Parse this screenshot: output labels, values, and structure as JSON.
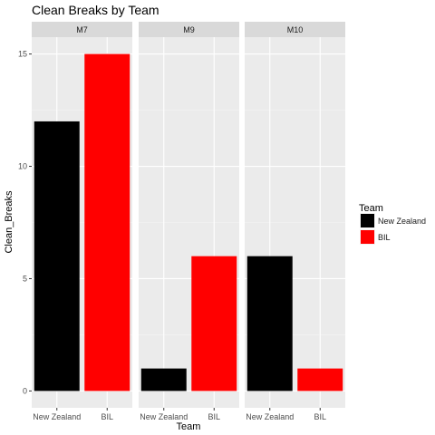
{
  "chart_data": {
    "type": "bar",
    "title": "Clean Breaks  by Team",
    "xlabel": "Team",
    "ylabel": "Clean_Breaks",
    "ylim": [
      -0.75,
      15.75
    ],
    "yticks": [
      0,
      5,
      10,
      15
    ],
    "categories": [
      "New Zealand",
      "BIL"
    ],
    "facets": [
      {
        "label": "M7",
        "values": [
          12,
          15
        ]
      },
      {
        "label": "M9",
        "values": [
          1,
          6
        ]
      },
      {
        "label": "M10",
        "values": [
          6,
          1
        ]
      }
    ],
    "grid": true,
    "legend": {
      "title": "Team",
      "position": "right",
      "entries": [
        {
          "label": "New Zealand",
          "color": "#000000"
        },
        {
          "label": "BIL",
          "color": "#ff0000"
        }
      ]
    },
    "colors": {
      "New Zealand": "#000000",
      "BIL": "#ff0000"
    }
  }
}
